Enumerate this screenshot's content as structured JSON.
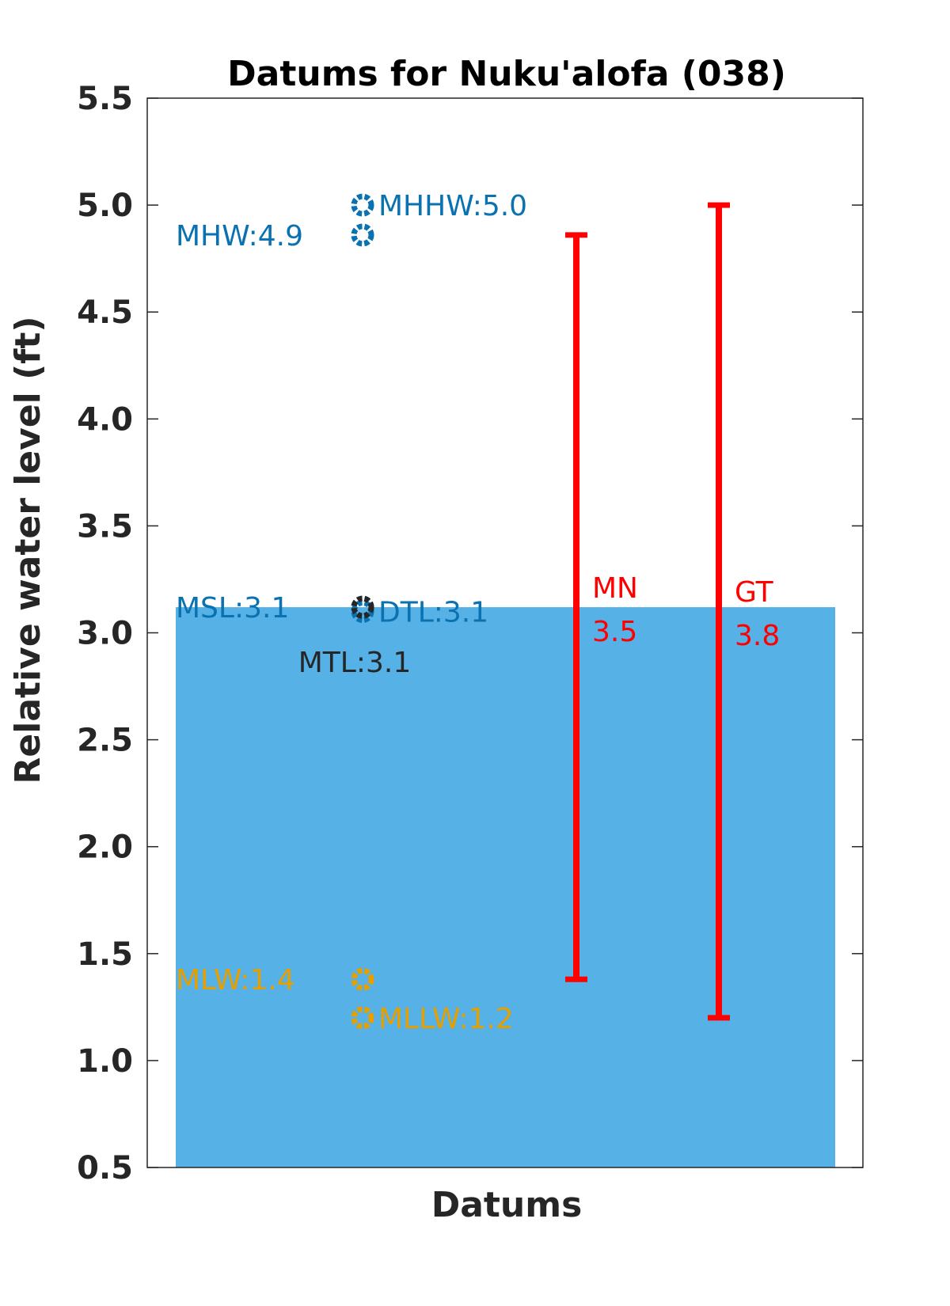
{
  "chart_data": {
    "type": "scatter",
    "title": "Datums for Nuku'alofa (038)",
    "xlabel": "Datums",
    "ylabel": "Relative water level (ft)",
    "ylim": [
      0.5,
      5.5
    ],
    "yticks": [
      "0.5",
      "1.0",
      "1.5",
      "2.0",
      "2.5",
      "3.0",
      "3.5",
      "4.0",
      "4.5",
      "5.0",
      "5.5"
    ],
    "bar": {
      "value": 3.12,
      "color": "#56B1E6"
    },
    "datums": [
      {
        "name": "MHHW",
        "value": 5.0,
        "label": "MHHW:5.0",
        "color": "#0A72B0",
        "label_side": "right"
      },
      {
        "name": "MHW",
        "value": 4.86,
        "label": "MHW:4.9",
        "color": "#0A72B0",
        "label_side": "left"
      },
      {
        "name": "MSL",
        "value": 3.12,
        "label": "MSL:3.1",
        "color": "#0A72B0",
        "label_side": "left"
      },
      {
        "name": "DTL",
        "value": 3.1,
        "label": "DTL:3.1",
        "color": "#0A72B0",
        "label_side": "right"
      },
      {
        "name": "MTL",
        "value": 3.12,
        "label": "MTL:3.1",
        "color": "#262626",
        "label_side": "below"
      },
      {
        "name": "MLW",
        "value": 1.38,
        "label": "MLW:1.4",
        "color": "#E69F00",
        "label_side": "left"
      },
      {
        "name": "MLLW",
        "value": 1.2,
        "label": "MLLW:1.2",
        "color": "#E69F00",
        "label_side": "right"
      }
    ],
    "ranges": [
      {
        "name": "MN",
        "label": "MN",
        "value_label": "3.5",
        "low": 1.38,
        "high": 4.86,
        "color": "#FF0000"
      },
      {
        "name": "GT",
        "label": "GT",
        "value_label": "3.8",
        "low": 1.2,
        "high": 5.0,
        "color": "#FF0000"
      }
    ]
  }
}
